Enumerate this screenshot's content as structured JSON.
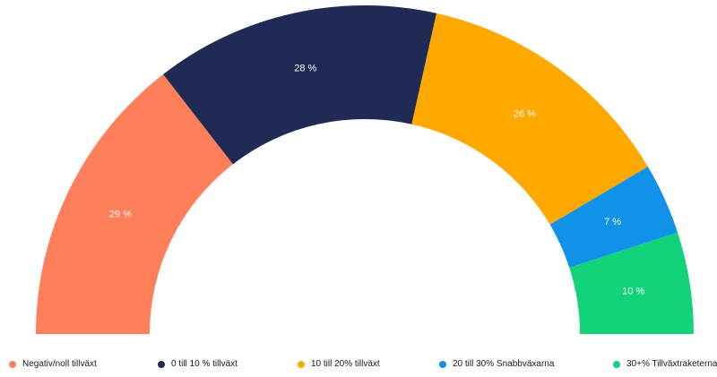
{
  "chart_data": {
    "type": "pie",
    "variant": "semi-donut",
    "title": "",
    "legend_position": "bottom",
    "categories": [
      "Negativ/noll tillväxt",
      "0 till 10 % tillväxt",
      "10 till 20% tillväxt",
      "20 till 30% Snabbväxarna",
      "30+% Tillväxtraketerna"
    ],
    "values": [
      29,
      28,
      26,
      7,
      10
    ],
    "labels": [
      "29 %",
      "28 %",
      "26 %",
      "7 %",
      "10 %"
    ],
    "unit": "%",
    "colors": [
      "#ff7f5a",
      "#1f2b55",
      "#ffa800",
      "#0f92e8",
      "#12d27a"
    ]
  }
}
